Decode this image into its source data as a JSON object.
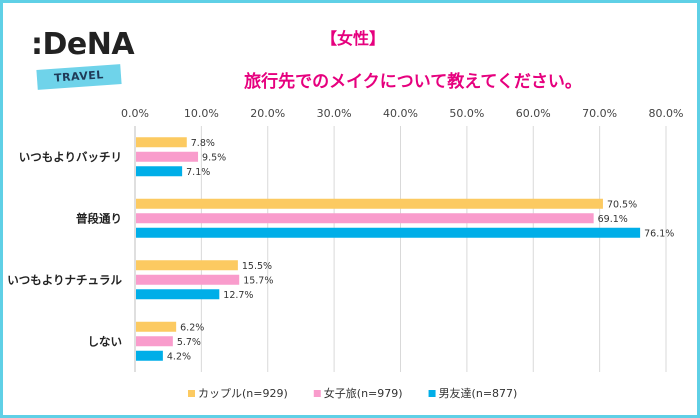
{
  "logo": {
    "word": ":DeNA",
    "sub": "TRAVEL"
  },
  "chart_data": {
    "type": "bar",
    "orientation": "horizontal",
    "title": "【女性】",
    "subtitle": "旅行先でのメイクについて教えてください。",
    "categories": [
      "いつもよりバッチリ",
      "普段通り",
      "いつもよりナチュラル",
      "しない"
    ],
    "series": [
      {
        "name": "カップル(n=929)",
        "color": "#fcca61",
        "values": [
          7.8,
          70.5,
          15.5,
          6.2
        ],
        "labels": [
          "7.8%",
          "70.5%",
          "15.5%",
          "6.2%"
        ]
      },
      {
        "name": "女子旅(n=979)",
        "color": "#f99ccc",
        "values": [
          9.5,
          69.1,
          15.7,
          5.7
        ],
        "labels": [
          "9.5%",
          "69.1%",
          "15.7%",
          "5.7%"
        ]
      },
      {
        "name": "男友達(n=877)",
        "color": "#00aee8",
        "values": [
          7.1,
          76.1,
          12.7,
          4.2
        ],
        "labels": [
          "7.1%",
          "76.1%",
          "12.7%",
          "4.2%"
        ]
      }
    ],
    "xlim": [
      0,
      80
    ],
    "xticks": [
      "0.0%",
      "10.0%",
      "20.0%",
      "30.0%",
      "40.0%",
      "50.0%",
      "60.0%",
      "70.0%",
      "80.0%"
    ],
    "grid": true,
    "legend": "bottom"
  }
}
